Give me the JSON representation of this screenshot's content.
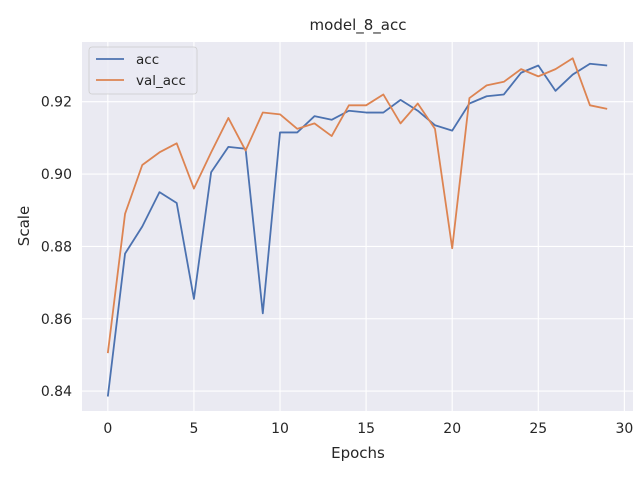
{
  "chart_data": {
    "type": "line",
    "title": "model_8_acc",
    "xlabel": "Epochs",
    "ylabel": "Scale",
    "xlim": [
      -1.5,
      30.5
    ],
    "ylim": [
      0.8345,
      0.9365
    ],
    "xticks": [
      0,
      5,
      10,
      15,
      20,
      25,
      30
    ],
    "yticks": [
      0.84,
      0.86,
      0.88,
      0.9,
      0.92
    ],
    "xtick_labels": [
      "0",
      "5",
      "10",
      "15",
      "20",
      "25",
      "30"
    ],
    "ytick_labels": [
      "0.84",
      "0.86",
      "0.88",
      "0.90",
      "0.92"
    ],
    "grid": true,
    "legend_position": "top-left",
    "x": [
      0,
      1,
      2,
      3,
      4,
      5,
      6,
      7,
      8,
      9,
      10,
      11,
      12,
      13,
      14,
      15,
      16,
      17,
      18,
      19,
      20,
      21,
      22,
      23,
      24,
      25,
      26,
      27,
      28,
      29
    ],
    "series": [
      {
        "name": "acc",
        "color": "#4c72b0",
        "values": [
          0.8385,
          0.878,
          0.8855,
          0.895,
          0.892,
          0.8655,
          0.9005,
          0.9075,
          0.907,
          0.8615,
          0.9115,
          0.9115,
          0.916,
          0.915,
          0.9175,
          0.917,
          0.917,
          0.9205,
          0.9175,
          0.9135,
          0.912,
          0.9195,
          0.9215,
          0.922,
          0.928,
          0.93,
          0.923,
          0.9275,
          0.9305,
          0.93
        ]
      },
      {
        "name": "val_acc",
        "color": "#dd8452",
        "values": [
          0.8505,
          0.889,
          0.9025,
          0.906,
          0.9085,
          0.896,
          0.906,
          0.9155,
          0.9065,
          0.917,
          0.9165,
          0.9125,
          0.914,
          0.9105,
          0.919,
          0.919,
          0.922,
          0.914,
          0.9195,
          0.9125,
          0.8795,
          0.921,
          0.9245,
          0.9255,
          0.929,
          0.927,
          0.929,
          0.932,
          0.919,
          0.918
        ]
      }
    ]
  },
  "style": {
    "plot_background": "#eaeaf2",
    "grid_color": "#ffffff",
    "text_color": "#262626"
  }
}
